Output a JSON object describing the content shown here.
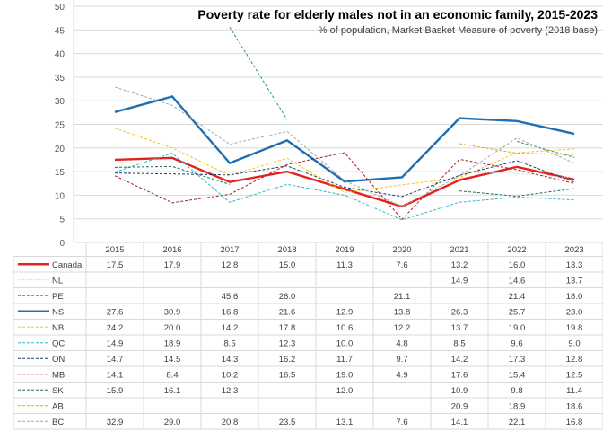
{
  "chart_data": {
    "type": "line",
    "title": "Poverty rate for elderly males not in an economic family, 2015-2023",
    "subtitle": "% of population, Market Basket Measure of poverty (2018 base)",
    "xlabel": "",
    "ylabel": "",
    "ylim": [
      0,
      50
    ],
    "yticks": [
      0,
      5,
      10,
      15,
      20,
      25,
      30,
      35,
      40,
      45,
      50
    ],
    "grid": true,
    "legend": "data-table-below",
    "categories": [
      "2015",
      "2016",
      "2017",
      "2018",
      "2019",
      "2020",
      "2021",
      "2022",
      "2023"
    ],
    "series": [
      {
        "name": "Canada",
        "color": "#e3231d",
        "style": "solid",
        "values": [
          17.5,
          17.9,
          12.8,
          15.0,
          11.3,
          7.6,
          13.2,
          16.0,
          13.3
        ]
      },
      {
        "name": "NL",
        "color": "#d0d0d0",
        "style": "dotted",
        "values": [
          null,
          null,
          null,
          null,
          null,
          null,
          14.9,
          14.6,
          13.7
        ]
      },
      {
        "name": "PE",
        "color": "#2a9a6a",
        "style": "dashed",
        "values": [
          null,
          null,
          45.6,
          26.0,
          null,
          21.1,
          null,
          21.4,
          18.0
        ]
      },
      {
        "name": "NS",
        "color": "#1f6fb2",
        "style": "solid",
        "values": [
          27.6,
          30.9,
          16.8,
          21.6,
          12.9,
          13.8,
          26.3,
          25.7,
          23.0
        ]
      },
      {
        "name": "NB",
        "color": "#f5c518",
        "style": "dashed",
        "values": [
          24.2,
          20.0,
          14.2,
          17.8,
          10.6,
          12.2,
          13.7,
          19.0,
          19.8
        ]
      },
      {
        "name": "QC",
        "color": "#35b3c9",
        "style": "dashed",
        "values": [
          14.9,
          18.9,
          8.5,
          12.3,
          10.0,
          4.8,
          8.5,
          9.6,
          9.0
        ]
      },
      {
        "name": "ON",
        "color": "#1f3d66",
        "style": "dashed",
        "values": [
          14.7,
          14.5,
          14.3,
          16.2,
          11.7,
          9.7,
          14.2,
          17.3,
          12.8
        ]
      },
      {
        "name": "MB",
        "color": "#a3202a",
        "style": "dashed",
        "values": [
          14.1,
          8.4,
          10.2,
          16.5,
          19.0,
          4.9,
          17.6,
          15.4,
          12.5
        ]
      },
      {
        "name": "SK",
        "color": "#1c6e5c",
        "style": "dashed",
        "values": [
          15.9,
          16.1,
          12.3,
          null,
          12.0,
          null,
          10.9,
          9.8,
          11.4
        ]
      },
      {
        "name": "AB",
        "color": "#d9a81c",
        "style": "dashed",
        "values": [
          null,
          null,
          null,
          null,
          null,
          null,
          20.9,
          18.9,
          18.6
        ]
      },
      {
        "name": "BC",
        "color": "#a6a6a6",
        "style": "dashed",
        "values": [
          32.9,
          29.0,
          20.8,
          23.5,
          13.1,
          7.6,
          14.1,
          22.1,
          16.8
        ]
      }
    ]
  }
}
